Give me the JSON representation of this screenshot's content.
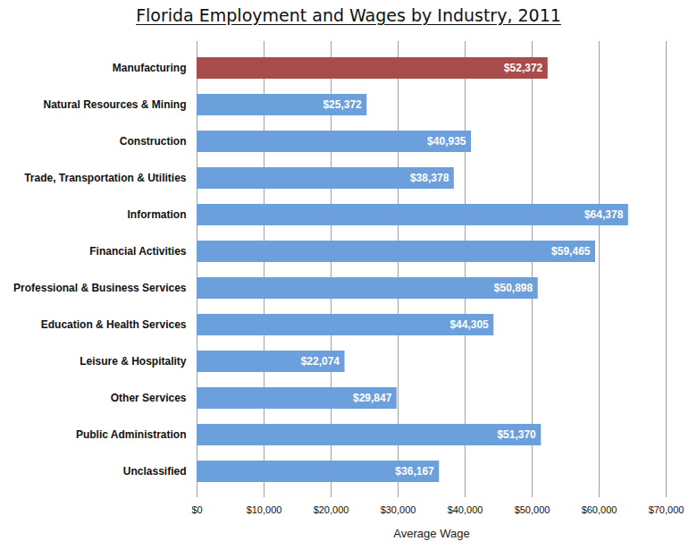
{
  "chart_data": {
    "type": "bar",
    "orientation": "horizontal",
    "title": "Florida Employment and Wages by Industry, 2011",
    "xlabel": "Average Wage",
    "categories": [
      "Manufacturing",
      "Natural Resources & Mining",
      "Construction",
      "Trade, Transportation & Utilities",
      "Information",
      "Financial Activities",
      "Professional & Business Services",
      "Education & Health Services",
      "Leisure & Hospitality",
      "Other Services",
      "Public Administration",
      "Unclassified"
    ],
    "values": [
      52372,
      25372,
      40935,
      38378,
      64378,
      59465,
      50898,
      44305,
      22074,
      29847,
      51370,
      36167
    ],
    "value_labels": [
      "$52,372",
      "$25,372",
      "$40,935",
      "$38,378",
      "$64,378",
      "$59,465",
      "$50,898",
      "$44,305",
      "$22,074",
      "$29,847",
      "$51,370",
      "$36,167"
    ],
    "colors": [
      "#a84b4b",
      "#6ca0dc",
      "#6ca0dc",
      "#6ca0dc",
      "#6ca0dc",
      "#6ca0dc",
      "#6ca0dc",
      "#6ca0dc",
      "#6ca0dc",
      "#6ca0dc",
      "#6ca0dc",
      "#6ca0dc"
    ],
    "xlim": [
      0,
      70000
    ],
    "xticks": [
      {
        "value": 0,
        "label": "$0"
      },
      {
        "value": 10000,
        "label": "$10,000"
      },
      {
        "value": 20000,
        "label": "$20,000"
      },
      {
        "value": 30000,
        "label": "$30,000"
      },
      {
        "value": 40000,
        "label": "$40,000"
      },
      {
        "value": 50000,
        "label": "$50,000"
      },
      {
        "value": 60000,
        "label": "$60,000"
      },
      {
        "value": 70000,
        "label": "$70,000"
      }
    ],
    "grid": true,
    "data_labels": true
  }
}
